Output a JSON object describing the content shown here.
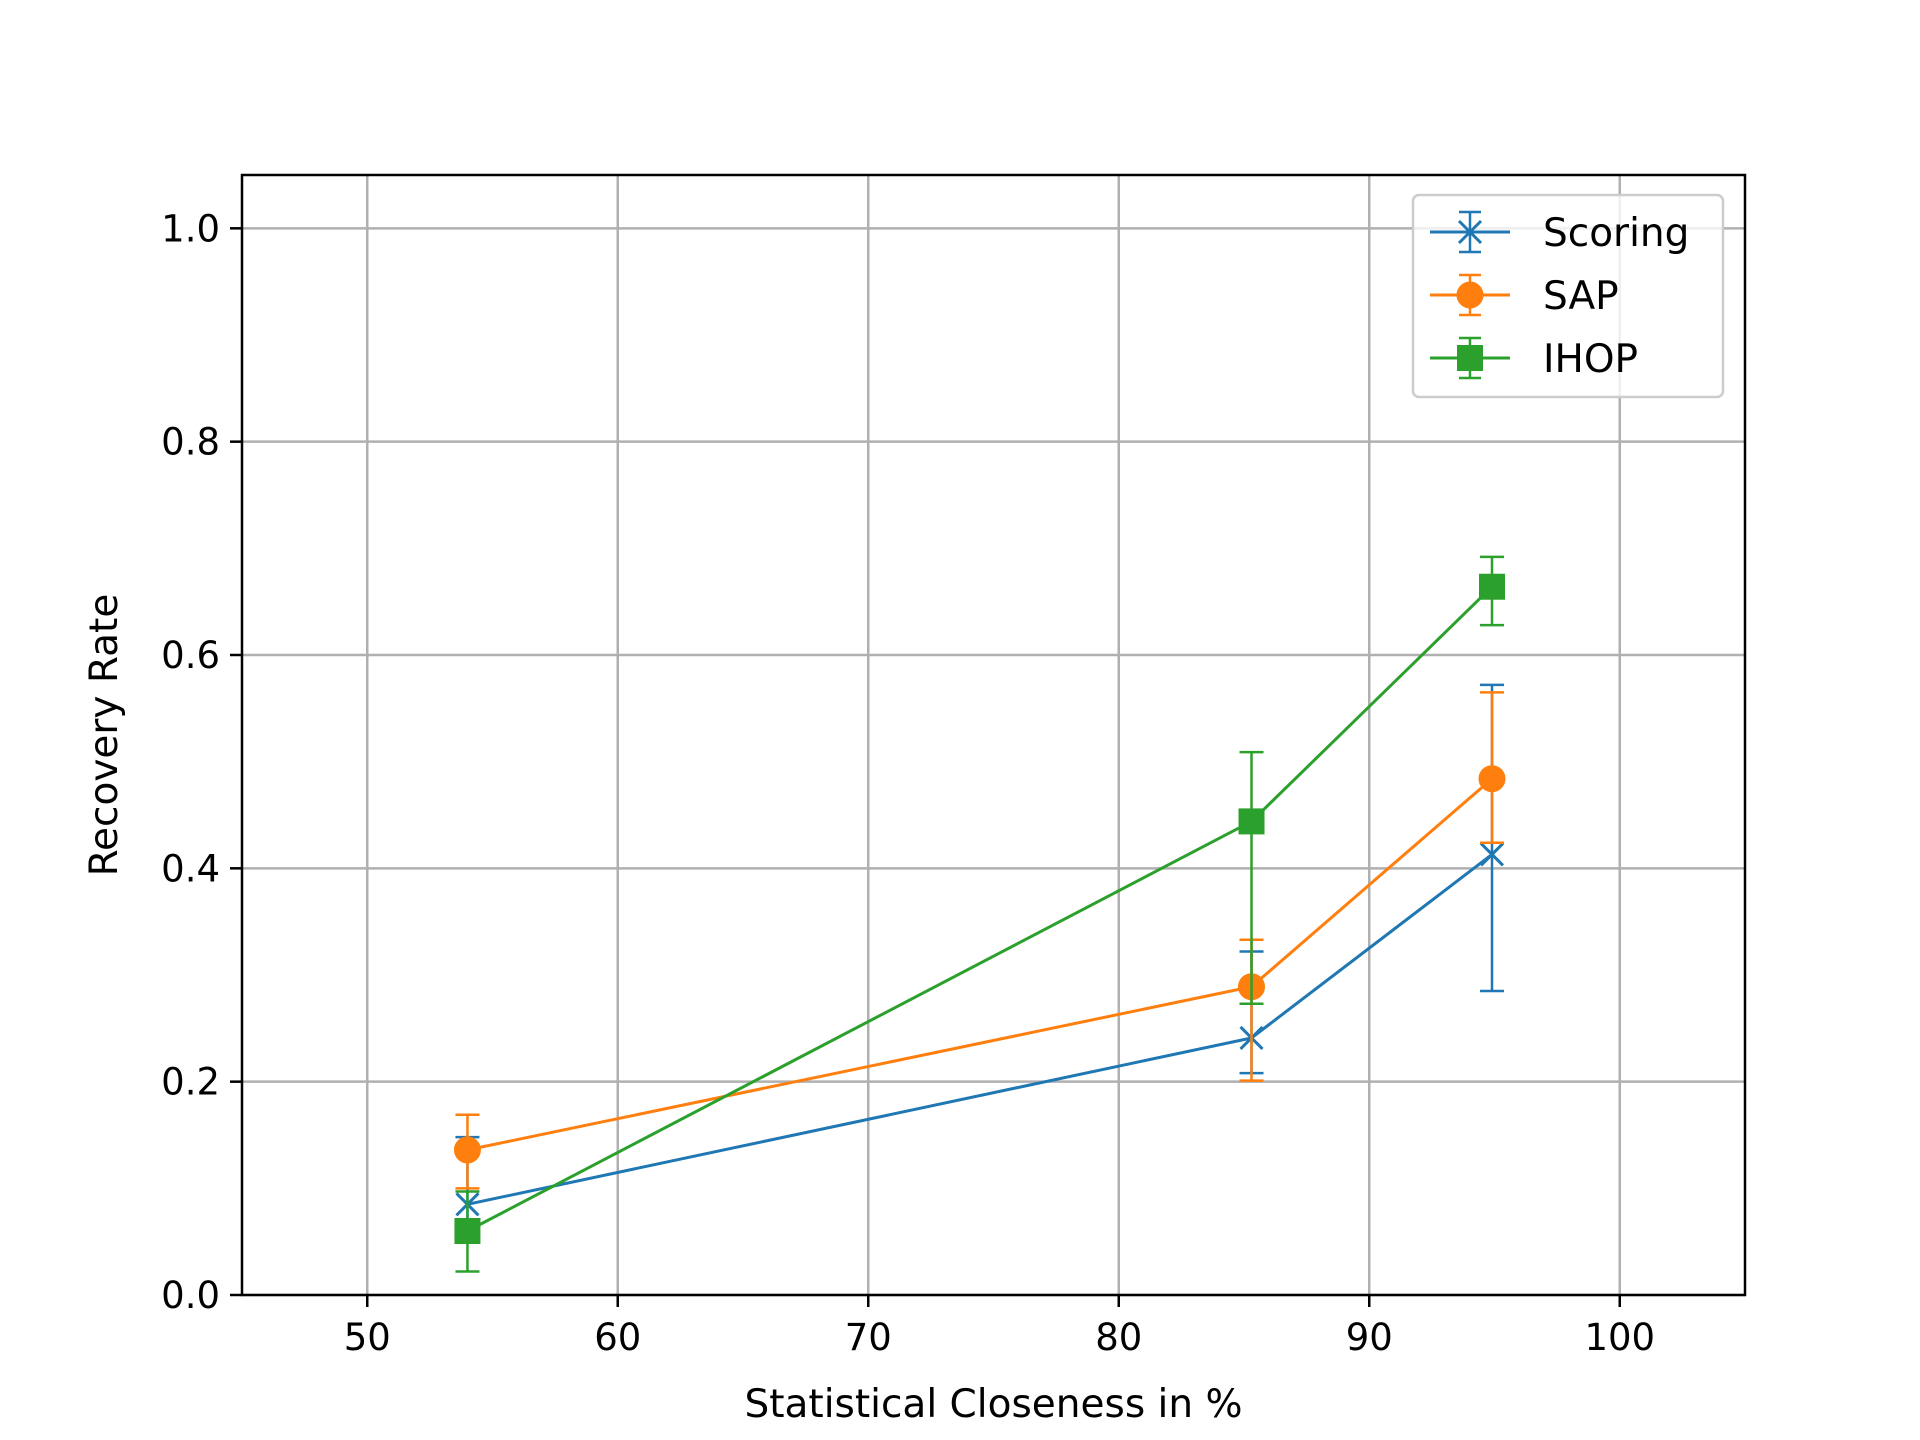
{
  "chart_data": {
    "type": "line",
    "title": "",
    "xlabel": "Statistical Closeness in %",
    "ylabel": "Recovery Rate",
    "xlim": [
      45,
      105
    ],
    "ylim": [
      0.0,
      1.05
    ],
    "xticks": [
      50,
      60,
      70,
      80,
      90,
      100
    ],
    "xtick_labels": [
      "50",
      "60",
      "70",
      "80",
      "90",
      "100"
    ],
    "yticks": [
      0.0,
      0.2,
      0.4,
      0.6,
      0.8,
      1.0
    ],
    "ytick_labels": [
      "0.0",
      "0.2",
      "0.4",
      "0.6",
      "0.8",
      "1.0"
    ],
    "grid": true,
    "legend_position": "top-right",
    "series": [
      {
        "name": "Scoring",
        "color": "#1f77b4",
        "marker": "x",
        "x": [
          54.0,
          85.3,
          94.9
        ],
        "y": [
          0.085,
          0.241,
          0.413
        ],
        "err_low": [
          0.068,
          0.208,
          0.285
        ],
        "err_high": [
          0.148,
          0.322,
          0.572
        ]
      },
      {
        "name": "SAP",
        "color": "#ff7f0e",
        "marker": "circle",
        "x": [
          54.0,
          85.3,
          94.9
        ],
        "y": [
          0.136,
          0.289,
          0.484
        ],
        "err_low": [
          0.1,
          0.201,
          0.424
        ],
        "err_high": [
          0.169,
          0.333,
          0.565
        ]
      },
      {
        "name": "IHOP",
        "color": "#2ca02c",
        "marker": "square",
        "x": [
          54.0,
          85.3,
          94.9
        ],
        "y": [
          0.06,
          0.444,
          0.664
        ],
        "err_low": [
          0.022,
          0.273,
          0.628
        ],
        "err_high": [
          0.097,
          0.509,
          0.692
        ]
      }
    ]
  }
}
